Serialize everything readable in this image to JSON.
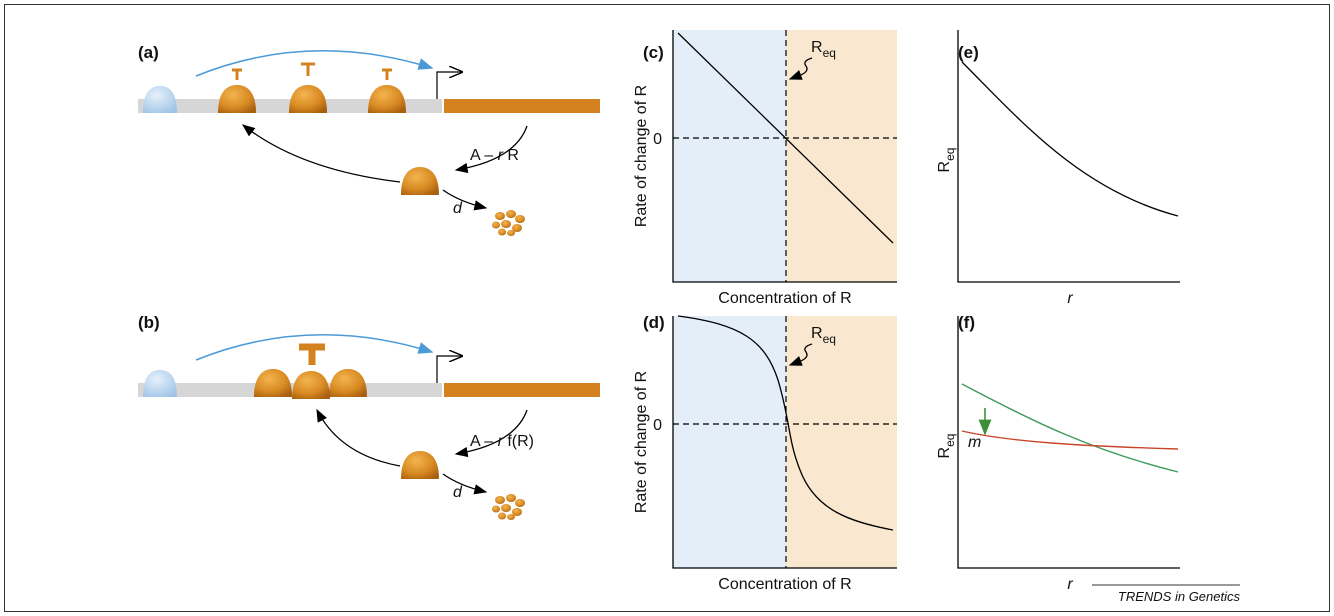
{
  "panels": {
    "a": "(a)",
    "b": "(b)",
    "c": "(c)",
    "d": "(d)",
    "e": "(e)",
    "f": "(f)"
  },
  "gene_a": {
    "rate": [
      "A – ",
      "r",
      " R"
    ],
    "decay": "d"
  },
  "gene_b": {
    "rate": [
      "A – ",
      "r",
      " f(R)"
    ],
    "decay": "d"
  },
  "plot_c": {
    "y_label": "Rate of change of R",
    "x_label": "Concentration of R",
    "zero": "0",
    "marker": [
      "R",
      "eq"
    ]
  },
  "plot_d": {
    "y_label": "Rate of change of R",
    "x_label": "Concentration of R",
    "zero": "0",
    "marker": [
      "R",
      "eq"
    ]
  },
  "plot_e": {
    "y_label": [
      "R",
      "eq"
    ],
    "x_label": "r"
  },
  "plot_f": {
    "y_label": [
      "R",
      "eq"
    ],
    "x_label": "r",
    "annotation": "m"
  },
  "footer": "TRENDS in Genetics"
}
